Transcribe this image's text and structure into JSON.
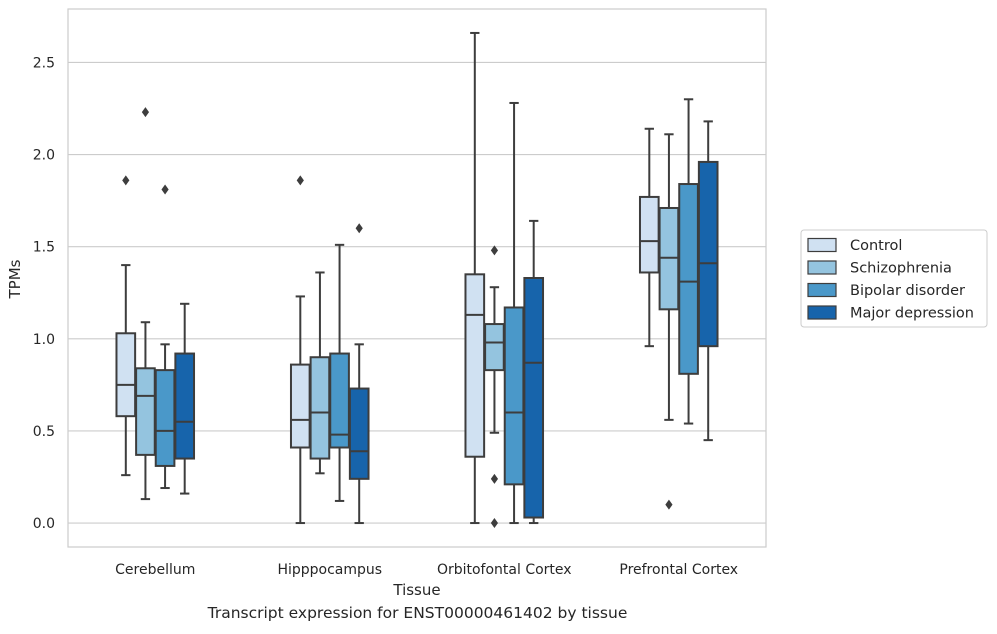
{
  "chart_data": {
    "type": "box",
    "xlabel": "Tissue",
    "ylabel": "TPMs",
    "caption": "Transcript expression for ENST00000461402 by tissue",
    "ylim": [
      -0.13,
      2.79
    ],
    "yticks": [
      0.0,
      0.5,
      1.0,
      1.5,
      2.0,
      2.5
    ],
    "ytick_labels": [
      "0.0",
      "0.5",
      "1.0",
      "1.5",
      "2.0",
      "2.5"
    ],
    "grid": "horizontal",
    "legend_position": "right",
    "categories": [
      "Cerebellum",
      "Hipppocampus",
      "Orbitofontal Cortex",
      "Prefrontal Cortex"
    ],
    "series": [
      {
        "name": "Control",
        "color": "#d0e1f2",
        "boxes": [
          {
            "whislo": 0.26,
            "q1": 0.58,
            "med": 0.75,
            "q3": 1.03,
            "whishi": 1.4,
            "fliers": [
              1.86
            ]
          },
          {
            "whislo": 0.0,
            "q1": 0.41,
            "med": 0.56,
            "q3": 0.86,
            "whishi": 1.23,
            "fliers": [
              1.86
            ]
          },
          {
            "whislo": 0.0,
            "q1": 0.36,
            "med": 1.13,
            "q3": 1.35,
            "whishi": 2.66,
            "fliers": []
          },
          {
            "whislo": 0.96,
            "q1": 1.36,
            "med": 1.53,
            "q3": 1.77,
            "whishi": 2.14,
            "fliers": []
          }
        ]
      },
      {
        "name": "Schizophrenia",
        "color": "#94c4df",
        "boxes": [
          {
            "whislo": 0.13,
            "q1": 0.37,
            "med": 0.69,
            "q3": 0.84,
            "whishi": 1.09,
            "fliers": [
              2.23
            ]
          },
          {
            "whislo": 0.27,
            "q1": 0.35,
            "med": 0.6,
            "q3": 0.9,
            "whishi": 1.36,
            "fliers": []
          },
          {
            "whislo": 0.49,
            "q1": 0.83,
            "med": 0.98,
            "q3": 1.08,
            "whishi": 1.28,
            "fliers": [
              1.48,
              0.24,
              0.0
            ]
          },
          {
            "whislo": 0.56,
            "q1": 1.16,
            "med": 1.44,
            "q3": 1.71,
            "whishi": 2.11,
            "fliers": [
              0.1
            ]
          }
        ]
      },
      {
        "name": "Bipolar disorder",
        "color": "#4a98c9",
        "boxes": [
          {
            "whislo": 0.19,
            "q1": 0.31,
            "med": 0.5,
            "q3": 0.83,
            "whishi": 0.97,
            "fliers": [
              1.81
            ]
          },
          {
            "whislo": 0.12,
            "q1": 0.41,
            "med": 0.48,
            "q3": 0.92,
            "whishi": 1.51,
            "fliers": []
          },
          {
            "whislo": 0.0,
            "q1": 0.21,
            "med": 0.6,
            "q3": 1.17,
            "whishi": 2.28,
            "fliers": []
          },
          {
            "whislo": 0.54,
            "q1": 0.81,
            "med": 1.31,
            "q3": 1.84,
            "whishi": 2.3,
            "fliers": []
          }
        ]
      },
      {
        "name": "Major depression",
        "color": "#1764ab",
        "boxes": [
          {
            "whislo": 0.16,
            "q1": 0.35,
            "med": 0.55,
            "q3": 0.92,
            "whishi": 1.19,
            "fliers": []
          },
          {
            "whislo": 0.0,
            "q1": 0.24,
            "med": 0.39,
            "q3": 0.73,
            "whishi": 0.97,
            "fliers": [
              1.6
            ]
          },
          {
            "whislo": 0.0,
            "q1": 0.03,
            "med": 0.87,
            "q3": 1.33,
            "whishi": 1.64,
            "fliers": []
          },
          {
            "whislo": 0.45,
            "q1": 0.96,
            "med": 1.41,
            "q3": 1.96,
            "whishi": 2.18,
            "fliers": []
          }
        ]
      }
    ]
  }
}
